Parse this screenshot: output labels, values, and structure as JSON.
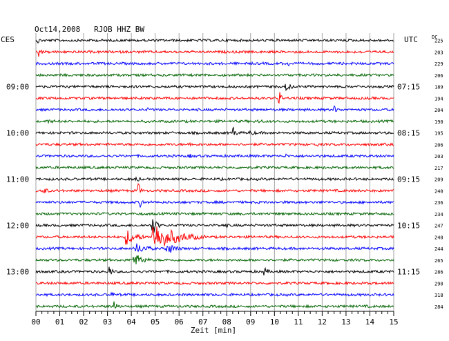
{
  "chart_data": {
    "type": "line",
    "title": "Oct14,2008   RJOB HHZ BW",
    "left_timezone": "CES",
    "right_timezone": "UTC",
    "dc_header": "DC",
    "xlabel": "Zeit [min]",
    "x_ticks": [
      "00",
      "01",
      "02",
      "03",
      "04",
      "05",
      "06",
      "07",
      "08",
      "09",
      "10",
      "11",
      "12",
      "13",
      "14",
      "15"
    ],
    "xlim": [
      0,
      15
    ],
    "grid": true,
    "trace_colors": [
      "#000000",
      "#ff0000",
      "#0000ff",
      "#006400"
    ],
    "left_hour_labels": [
      {
        "trace": 4,
        "text": "09:00"
      },
      {
        "trace": 8,
        "text": "10:00"
      },
      {
        "trace": 12,
        "text": "11:00"
      },
      {
        "trace": 16,
        "text": "12:00"
      },
      {
        "trace": 20,
        "text": "13:00"
      }
    ],
    "right_hour_labels": [
      {
        "trace": 4,
        "text": "07:15"
      },
      {
        "trace": 8,
        "text": "08:15"
      },
      {
        "trace": 12,
        "text": "09:15"
      },
      {
        "trace": 16,
        "text": "10:15"
      },
      {
        "trace": 20,
        "text": "11:15"
      }
    ],
    "dc_values": [
      "225",
      "203",
      "229",
      "206",
      "189",
      "194",
      "204",
      "190",
      "195",
      "206",
      "203",
      "217",
      "209",
      "240",
      "236",
      "234",
      "247",
      "240",
      "244",
      "265",
      "286",
      "290",
      "318",
      "284"
    ],
    "events": [
      {
        "trace": 0,
        "minute": 0.1,
        "amplitude": 5,
        "duration": 0.2
      },
      {
        "trace": 1,
        "minute": 0.15,
        "amplitude": 8,
        "duration": 0.2
      },
      {
        "trace": 2,
        "minute": 10.6,
        "amplitude": 4,
        "duration": 0.3
      },
      {
        "trace": 4,
        "minute": 10.5,
        "amplitude": 6,
        "duration": 0.6
      },
      {
        "trace": 5,
        "minute": 10.2,
        "amplitude": 12,
        "duration": 0.2
      },
      {
        "trace": 6,
        "minute": 12.5,
        "amplitude": 6,
        "duration": 0.4
      },
      {
        "trace": 6,
        "minute": 14.5,
        "amplitude": 4,
        "duration": 0.3
      },
      {
        "trace": 6,
        "minute": 4.7,
        "amplitude": 3,
        "duration": 0.5
      },
      {
        "trace": 7,
        "minute": 0.5,
        "amplitude": 3,
        "duration": 1.5
      },
      {
        "trace": 7,
        "minute": 9.3,
        "amplitude": 3,
        "duration": 1.0
      },
      {
        "trace": 8,
        "minute": 8.3,
        "amplitude": 10,
        "duration": 0.2
      },
      {
        "trace": 8,
        "minute": 9.0,
        "amplitude": 4,
        "duration": 0.8
      },
      {
        "trace": 9,
        "minute": 6.5,
        "amplitude": 4,
        "duration": 0.3
      },
      {
        "trace": 9,
        "minute": 11.8,
        "amplitude": 3,
        "duration": 0.4
      },
      {
        "trace": 10,
        "minute": 6.5,
        "amplitude": 3,
        "duration": 0.5
      },
      {
        "trace": 10,
        "minute": 10.5,
        "amplitude": 3,
        "duration": 0.3
      },
      {
        "trace": 12,
        "minute": 4.2,
        "amplitude": 5,
        "duration": 0.4
      },
      {
        "trace": 13,
        "minute": 0.3,
        "amplitude": 6,
        "duration": 0.5
      },
      {
        "trace": 13,
        "minute": 4.3,
        "amplitude": 12,
        "duration": 0.2
      },
      {
        "trace": 14,
        "minute": 4.4,
        "amplitude": 10,
        "duration": 0.2
      },
      {
        "trace": 16,
        "minute": 4.9,
        "amplitude": 14,
        "duration": 0.4
      },
      {
        "trace": 16,
        "minute": 7.9,
        "amplitude": 5,
        "duration": 0.4
      },
      {
        "trace": 17,
        "minute": 4.9,
        "amplitude": 22,
        "duration": 2.2
      },
      {
        "trace": 17,
        "minute": 3.8,
        "amplitude": 12,
        "duration": 1.0
      },
      {
        "trace": 18,
        "minute": 5.5,
        "amplitude": 10,
        "duration": 0.8
      },
      {
        "trace": 18,
        "minute": 4.2,
        "amplitude": 8,
        "duration": 1.2
      },
      {
        "trace": 19,
        "minute": 4.1,
        "amplitude": 11,
        "duration": 0.9
      },
      {
        "trace": 20,
        "minute": 3.1,
        "amplitude": 10,
        "duration": 0.2
      },
      {
        "trace": 20,
        "minute": 9.6,
        "amplitude": 6,
        "duration": 0.4
      },
      {
        "trace": 22,
        "minute": 3.2,
        "amplitude": 5,
        "duration": 0.2
      },
      {
        "trace": 23,
        "minute": 3.3,
        "amplitude": 10,
        "duration": 0.2
      }
    ]
  }
}
